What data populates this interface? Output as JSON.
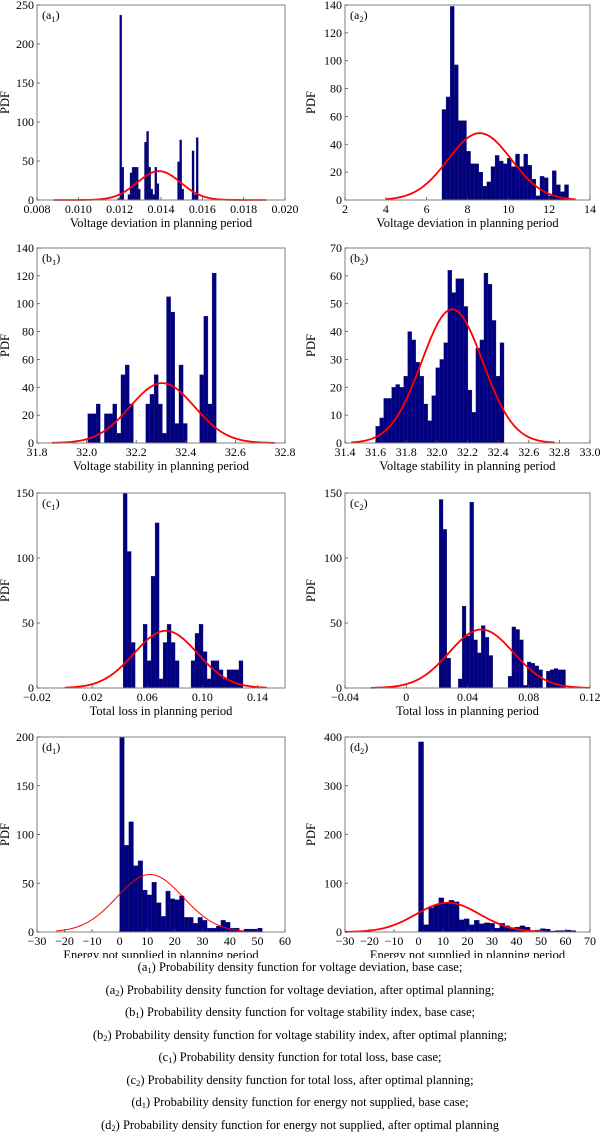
{
  "figure": {
    "bar_color": "#000080",
    "fit_color": "#ff0000",
    "frame_color": "#808080"
  },
  "chart_data": [
    {
      "id": "a1",
      "panel_label": "a",
      "panel_sub": "1",
      "type": "bar",
      "xlabel": "Voltage deviation in planning period",
      "ylabel": "PDF",
      "xlim": [
        0.008,
        0.02
      ],
      "ylim": [
        0,
        250
      ],
      "xticks": [
        0.008,
        0.01,
        0.012,
        0.014,
        0.016,
        0.018,
        0.02
      ],
      "xtick_labels": [
        "0.008",
        "0.010",
        "0.012",
        "0.014",
        "0.016",
        "0.018",
        "0.020"
      ],
      "yticks": [
        0,
        50,
        100,
        150,
        200,
        250
      ],
      "ytick_labels": [
        "0",
        "50",
        "100",
        "150",
        "200",
        "250"
      ],
      "bin_start": 0.0119,
      "bin_width": 0.0001,
      "values": [
        2,
        237,
        42,
        0,
        0,
        7,
        35,
        42,
        42,
        42,
        14,
        0,
        0,
        74,
        88,
        42,
        14,
        7,
        42,
        21,
        0,
        0,
        0,
        0,
        0,
        0,
        0,
        0,
        0,
        49,
        77,
        14,
        0,
        0,
        0,
        0,
        63,
        7,
        80
      ],
      "fit": {
        "type": "normal",
        "mean": 0.0139,
        "std": 0.00105,
        "peak": 37,
        "range": [
          0.0088,
          0.0191
        ]
      }
    },
    {
      "id": "a2",
      "panel_label": "a",
      "panel_sub": "2",
      "type": "bar",
      "xlabel": "Voltage deviation in planning period",
      "ylabel": "PDF",
      "xlim": [
        2,
        14
      ],
      "ylim": [
        0,
        140
      ],
      "xticks": [
        2,
        4,
        6,
        8,
        10,
        12,
        14
      ],
      "xtick_labels": [
        "2",
        "4",
        "6",
        "8",
        "10",
        "12",
        "14"
      ],
      "yticks": [
        0,
        20,
        40,
        60,
        80,
        100,
        120,
        140
      ],
      "ytick_labels": [
        "0",
        "20",
        "40",
        "60",
        "80",
        "100",
        "120",
        "140"
      ],
      "bin_start": 6.75,
      "bin_width": 0.2,
      "values": [
        65,
        74,
        139,
        97,
        57,
        57,
        35,
        26,
        26,
        20,
        10,
        13,
        24,
        32,
        28,
        26,
        30,
        24,
        33,
        24,
        33,
        25,
        15,
        3,
        17,
        16,
        3,
        21,
        11,
        6,
        11,
        0
      ],
      "fit": {
        "type": "normal",
        "mean": 8.6,
        "std": 1.55,
        "peak": 48,
        "range": [
          4.0,
          13.3
        ]
      }
    },
    {
      "id": "b1",
      "panel_label": "b",
      "panel_sub": "1",
      "type": "bar",
      "xlabel": "Voltage stability in planning period",
      "ylabel": "PDF",
      "xlim": [
        31.8,
        32.8
      ],
      "ylim": [
        0,
        140
      ],
      "xticks": [
        31.8,
        32.0,
        32.2,
        32.4,
        32.6,
        32.8
      ],
      "xtick_labels": [
        "31.8",
        "32.0",
        "32.2",
        "32.4",
        "32.6",
        "32.8"
      ],
      "yticks": [
        0,
        20,
        40,
        60,
        80,
        100,
        120,
        140
      ],
      "ytick_labels": [
        "0",
        "20",
        "40",
        "60",
        "80",
        "100",
        "120",
        "140"
      ],
      "bin_start": 32.005,
      "bin_width": 0.0167,
      "values": [
        21,
        21,
        28,
        0,
        21,
        21,
        28,
        7,
        49,
        56,
        28,
        0,
        0,
        0,
        28,
        35,
        49,
        28,
        7,
        105,
        94,
        14,
        56,
        14,
        0,
        0,
        0,
        49,
        91,
        28,
        122
      ],
      "fit": {
        "type": "normal",
        "mean": 32.305,
        "std": 0.13,
        "peak": 43,
        "range": [
          31.86,
          32.76
        ]
      }
    },
    {
      "id": "b2",
      "panel_label": "b",
      "panel_sub": "2",
      "type": "bar",
      "xlabel": "Voltage stability in planning period",
      "ylabel": "PDF",
      "xlim": [
        31.4,
        33.0
      ],
      "ylim": [
        0,
        70
      ],
      "xticks": [
        31.4,
        31.6,
        31.8,
        32.0,
        32.2,
        32.4,
        32.6,
        32.8,
        33.0
      ],
      "xtick_labels": [
        "31.4",
        "31.6",
        "31.8",
        "32.0",
        "32.2",
        "32.4",
        "32.6",
        "32.8",
        "33.0"
      ],
      "yticks": [
        0,
        10,
        20,
        30,
        40,
        50,
        60,
        70
      ],
      "ytick_labels": [
        "0",
        "10",
        "20",
        "30",
        "40",
        "50",
        "60",
        "70"
      ],
      "bin_start": 31.6,
      "bin_width": 0.0262,
      "values": [
        6,
        9,
        16,
        16,
        20,
        21,
        20,
        24,
        40,
        37,
        29,
        24,
        14,
        8,
        17,
        27,
        30,
        36,
        62,
        54,
        59,
        59,
        49,
        19,
        11,
        34,
        37,
        61,
        57,
        44,
        24,
        36
      ],
      "fit": {
        "type": "normal",
        "mean": 32.1,
        "std": 0.2,
        "peak": 48,
        "range": [
          31.44,
          32.77
        ]
      }
    },
    {
      "id": "c1",
      "panel_label": "c",
      "panel_sub": "1",
      "type": "bar",
      "xlabel": "Total loss in planning period",
      "ylabel": "PDF",
      "xlim": [
        -0.02,
        0.16
      ],
      "ylim": [
        0,
        150
      ],
      "xticks": [
        -0.02,
        0.02,
        0.06,
        0.1,
        0.14
      ],
      "xtick_labels": [
        "−0.02",
        "0.02",
        "0.06",
        "0.10",
        "0.14"
      ],
      "yticks": [
        0,
        50,
        100,
        150
      ],
      "ytick_labels": [
        "0",
        "50",
        "100",
        "150"
      ],
      "bin_start": 0.0425,
      "bin_width": 0.0029,
      "values": [
        150,
        105,
        35,
        0,
        0,
        49,
        21,
        86,
        127,
        7,
        35,
        49,
        35,
        21,
        0,
        0,
        0,
        21,
        42,
        49,
        28,
        7,
        21,
        21,
        14,
        7,
        14,
        14,
        14,
        21
      ],
      "fit": {
        "type": "normal",
        "mean": 0.0735,
        "std": 0.023,
        "peak": 44,
        "range": [
          0.0,
          0.147
        ]
      }
    },
    {
      "id": "c2",
      "panel_label": "c",
      "panel_sub": "2",
      "type": "bar",
      "xlabel": "Total loss in planning period",
      "ylabel": "PDF",
      "xlim": [
        -0.04,
        0.12
      ],
      "ylim": [
        0,
        150
      ],
      "xticks": [
        -0.04,
        0,
        0.04,
        0.08,
        0.12
      ],
      "xtick_labels": [
        "−0.04",
        "0",
        "0.04",
        "0.08",
        "0.12"
      ],
      "yticks": [
        0,
        50,
        100,
        150
      ],
      "ytick_labels": [
        "0",
        "50",
        "100",
        "150"
      ],
      "bin_start": 0.0215,
      "bin_width": 0.0025,
      "values": [
        145,
        122,
        23,
        0,
        0,
        7,
        63,
        40,
        143,
        37,
        27,
        48,
        39,
        25,
        0,
        0,
        0,
        0,
        9,
        47,
        45,
        37,
        2,
        20,
        19,
        17,
        14,
        0,
        13,
        14,
        15,
        14,
        14
      ],
      "fit": {
        "type": "normal",
        "mean": 0.049,
        "std": 0.021,
        "peak": 45,
        "range": [
          -0.023,
          0.12
        ]
      }
    },
    {
      "id": "d1",
      "panel_label": "d",
      "panel_sub": "1",
      "type": "bar",
      "xlabel": "Energy not supplied in planning period",
      "ylabel": "PDF",
      "xlim": [
        -30,
        60
      ],
      "ylim": [
        0,
        200
      ],
      "xticks": [
        -30,
        -20,
        -10,
        0,
        10,
        20,
        30,
        40,
        50,
        60
      ],
      "xtick_labels": [
        "−30",
        "−20",
        "−10",
        "0",
        "10",
        "20",
        "30",
        "40",
        "50",
        "60"
      ],
      "yticks": [
        0,
        50,
        100,
        150,
        200
      ],
      "ytick_labels": [
        "0",
        "50",
        "100",
        "150",
        "200"
      ],
      "bin_start": 0,
      "bin_width": 1.67,
      "values": [
        200,
        89,
        113,
        68,
        73,
        43,
        38,
        51,
        30,
        16,
        42,
        34,
        33,
        37,
        15,
        15,
        9,
        15,
        12,
        4,
        4,
        6,
        12,
        10,
        4,
        4,
        1,
        3,
        3,
        3,
        4,
        0
      ],
      "fit": {
        "type": "normal",
        "mean": 11,
        "std": 12,
        "peak": 59,
        "range": [
          -23,
          45
        ]
      }
    },
    {
      "id": "d2",
      "panel_label": "d",
      "panel_sub": "2",
      "type": "bar",
      "xlabel": "Energy not supplied in planning period",
      "ylabel": "PDF",
      "xlim": [
        -30,
        70
      ],
      "ylim": [
        0,
        400
      ],
      "xticks": [
        -30,
        -20,
        -10,
        0,
        10,
        20,
        30,
        40,
        50,
        60,
        70
      ],
      "xtick_labels": [
        "−30",
        "−20",
        "−10",
        "0",
        "10",
        "20",
        "30",
        "40",
        "50",
        "60",
        "70"
      ],
      "yticks": [
        0,
        100,
        200,
        300,
        400
      ],
      "ytick_labels": [
        "0",
        "100",
        "200",
        "300",
        "400"
      ],
      "bin_start": 0,
      "bin_width": 2.07,
      "values": [
        390,
        15,
        50,
        55,
        70,
        60,
        65,
        62,
        25,
        27,
        15,
        24,
        17,
        19,
        18,
        8,
        18,
        13,
        9,
        10,
        13,
        10,
        3,
        4,
        7,
        6,
        2,
        3,
        3,
        4,
        3,
        0
      ],
      "fit": {
        "type": "normal",
        "mean": 12,
        "std": 13,
        "peak": 60,
        "range": [
          -30,
          52
        ]
      }
    }
  ],
  "caption": [
    {
      "label": "a",
      "sub": "1",
      "text": "Probability density function for voltage deviation, base case;"
    },
    {
      "label": "a",
      "sub": "2",
      "text": "Probability density function for voltage deviation, after optimal planning;"
    },
    {
      "label": "b",
      "sub": "1",
      "text": "Probability density function for voltage stability index, base case;"
    },
    {
      "label": "b",
      "sub": "2",
      "text": "Probability density function for voltage stability index, after optimal planning;"
    },
    {
      "label": "c",
      "sub": "1",
      "text": "Probability density function for total loss, base case;"
    },
    {
      "label": "c",
      "sub": "2",
      "text": "Probability density function for total loss, after optimal planning;"
    },
    {
      "label": "d",
      "sub": "1",
      "text": "Probability density function for energy not supplied, base case;"
    },
    {
      "label": "d",
      "sub": "2",
      "text": "Probability density function for energy not supplied, after optimal planning"
    }
  ]
}
